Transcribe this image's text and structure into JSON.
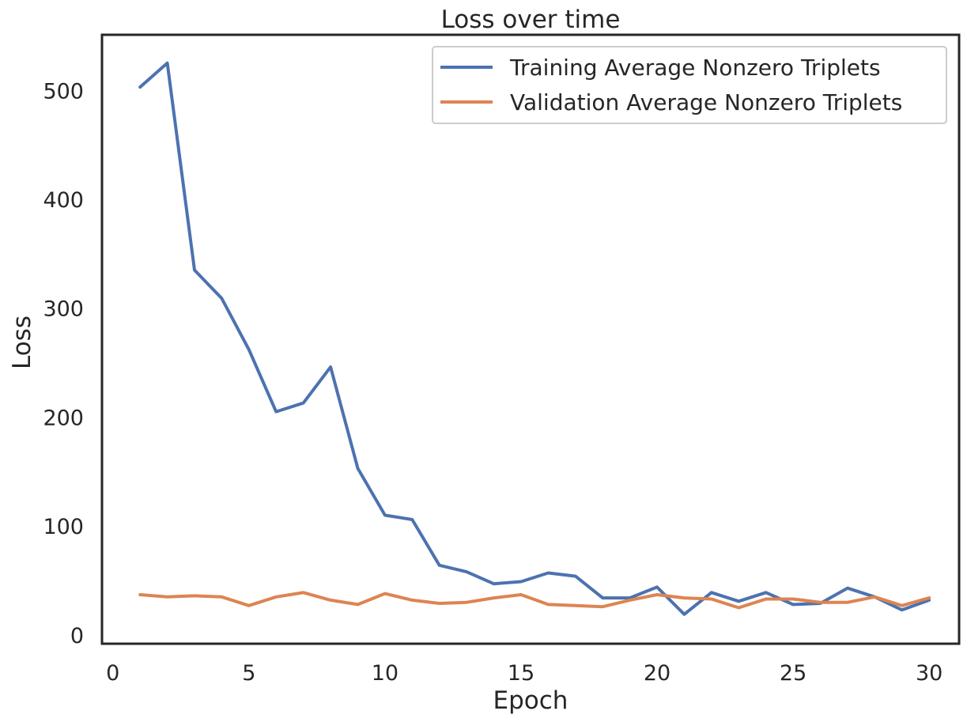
{
  "chart_data": {
    "type": "line",
    "title": "Loss over time",
    "xlabel": "Epoch",
    "ylabel": "Loss",
    "xlim": [
      -0.4,
      31.1
    ],
    "ylim": [
      -8,
      551
    ],
    "xticks": [
      0,
      5,
      10,
      15,
      20,
      25,
      30
    ],
    "yticks": [
      0,
      100,
      200,
      300,
      400,
      500
    ],
    "grid": false,
    "legend_position": "top-right",
    "x": [
      1,
      2,
      3,
      4,
      5,
      6,
      7,
      8,
      9,
      10,
      11,
      12,
      13,
      14,
      15,
      16,
      17,
      18,
      19,
      20,
      21,
      22,
      23,
      24,
      25,
      26,
      27,
      28,
      29,
      30
    ],
    "series": [
      {
        "name": "Training Average Nonzero Triplets",
        "color": "#4c72b0",
        "values": [
          503,
          525,
          335,
          309,
          262,
          205,
          213,
          246,
          153,
          110,
          106,
          64,
          58,
          47,
          49,
          57,
          54,
          34,
          34,
          44,
          19,
          39,
          31,
          39,
          28,
          29,
          43,
          35,
          23,
          32
        ]
      },
      {
        "name": "Validation Average Nonzero Triplets",
        "color": "#dd8452",
        "values": [
          37,
          35,
          36,
          35,
          27,
          35,
          39,
          32,
          28,
          38,
          32,
          29,
          30,
          34,
          37,
          28,
          27,
          26,
          32,
          37,
          34,
          33,
          25,
          33,
          33,
          30,
          30,
          35,
          27,
          34
        ]
      }
    ]
  }
}
